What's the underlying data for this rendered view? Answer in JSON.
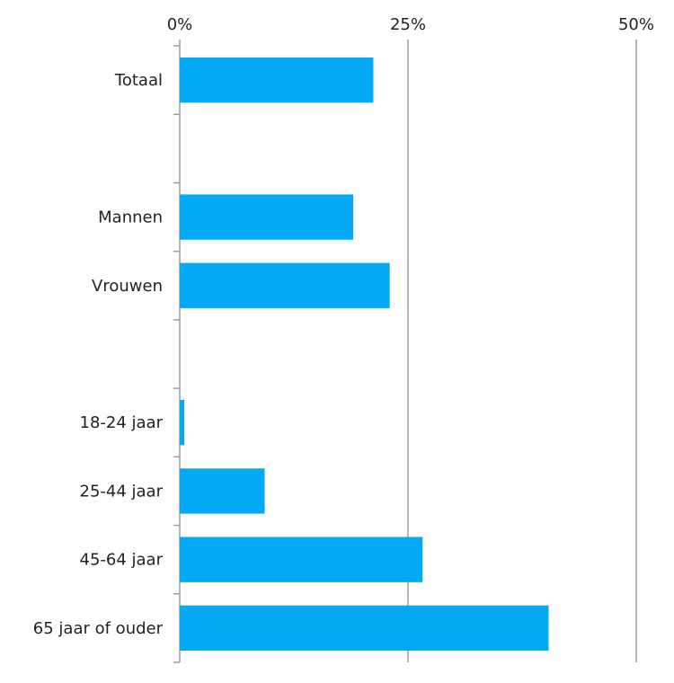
{
  "chart_data": {
    "type": "bar",
    "orientation": "horizontal",
    "title": "",
    "xlabel": "",
    "ylabel": "",
    "x_ticks": [
      "0%",
      "25%",
      "50%"
    ],
    "x_tick_values": [
      0,
      25,
      50
    ],
    "xlim": [
      0,
      50
    ],
    "axis_position": "top",
    "grid": true,
    "legend": "none",
    "bar_color": "#03A9F4",
    "gridline_color": "#9E9E9E",
    "categories": [
      "Totaal",
      "",
      "Mannen",
      "Vrouwen",
      "",
      "18-24 jaar",
      "25-44 jaar",
      "45-64 jaar",
      "65 jaar of ouder"
    ],
    "values": [
      21.2,
      null,
      19,
      23,
      null,
      0.5,
      9.3,
      26.6,
      40.4
    ]
  }
}
